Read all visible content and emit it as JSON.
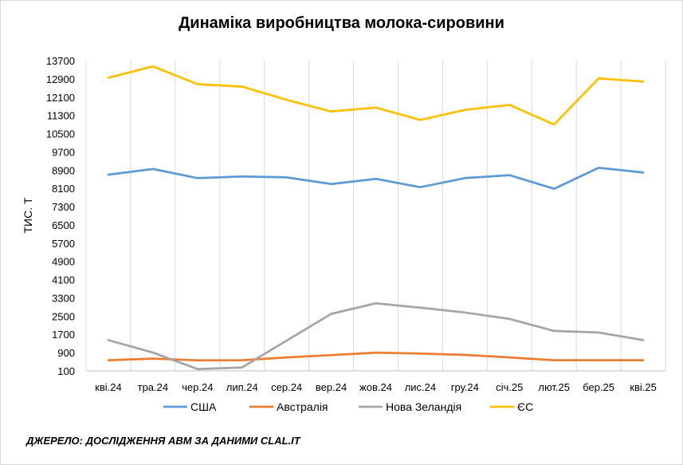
{
  "chart_data": {
    "type": "line",
    "title": "Динаміка виробництва молока-сировини",
    "ylabel": "ТИС. Т",
    "xlabel": "",
    "categories": [
      "кві.24",
      "тра.24",
      "чер.24",
      "лип.24",
      "сер.24",
      "вер.24",
      "жов.24",
      "лис.24",
      "гру.24",
      "січ.25",
      "лют.25",
      "бер.25",
      "кві.25"
    ],
    "y_ticks": [
      "100",
      "900",
      "1700",
      "2500",
      "3300",
      "4100",
      "4900",
      "5700",
      "6500",
      "7300",
      "8100",
      "8900",
      "9700",
      "10500",
      "11300",
      "12100",
      "12900",
      "13700"
    ],
    "ylim": [
      100,
      13700
    ],
    "grid": "vertical",
    "legend_position": "bottom",
    "series": [
      {
        "name": "США",
        "color": "#5b9bd5",
        "values": [
          8700,
          8950,
          8550,
          8620,
          8580,
          8290,
          8520,
          8150,
          8550,
          8680,
          8080,
          9000,
          8800
        ]
      },
      {
        "name": "Австралія",
        "color": "#ed7d31",
        "values": [
          570,
          640,
          560,
          570,
          690,
          790,
          900,
          860,
          800,
          690,
          570,
          570,
          570
        ]
      },
      {
        "name": "Нова Зеландія",
        "color": "#a5a5a5",
        "values": [
          1450,
          900,
          180,
          250,
          1430,
          2600,
          3060,
          2870,
          2660,
          2380,
          1850,
          1780,
          1450
        ]
      },
      {
        "name": "ЄС",
        "color": "#ffc000",
        "values": [
          12950,
          13450,
          12670,
          12560,
          11980,
          11470,
          11640,
          11100,
          11540,
          11760,
          10900,
          12920,
          12780
        ]
      }
    ]
  },
  "source": "ДЖЕРЕЛО: ДОСЛІДЖЕННЯ АВМ ЗА ДАНИМИ CLAL.IT"
}
